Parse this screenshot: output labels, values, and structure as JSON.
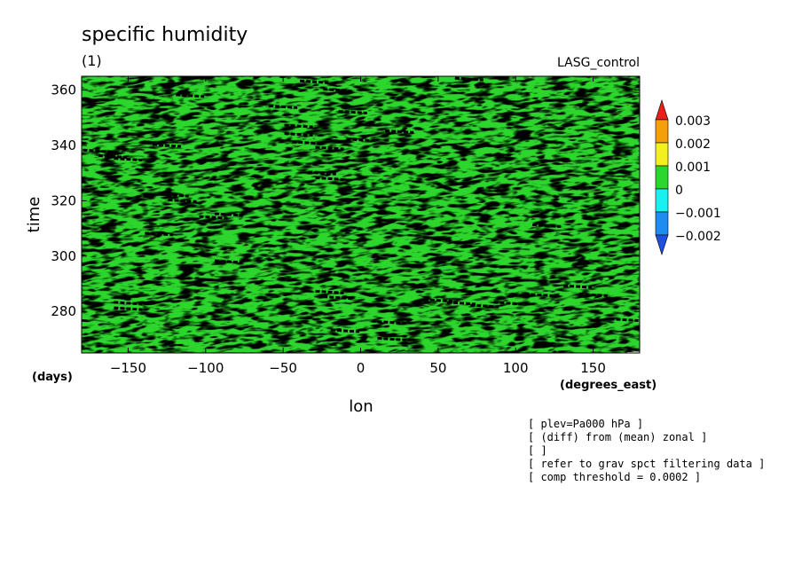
{
  "chart_data": {
    "type": "heatmap",
    "title": "specific humidity",
    "subtitle": "(1)",
    "run_label": "LASG_control",
    "xlabel": "lon",
    "ylabel": "time",
    "x_unit": "(degrees_east)",
    "y_unit": "(days)",
    "xlim": [
      -180,
      180
    ],
    "ylim": [
      265,
      365
    ],
    "x_ticks": [
      -150,
      -100,
      -50,
      0,
      50,
      100,
      150
    ],
    "y_ticks": [
      280,
      300,
      320,
      340,
      360
    ],
    "x_tick_labels": [
      "−150",
      "−100",
      "−50",
      "0",
      "50",
      "100",
      "150"
    ],
    "y_tick_labels": [
      "280",
      "300",
      "320",
      "340",
      "360"
    ],
    "colorbar": {
      "levels": [
        "0.003",
        "0.002",
        "0.001",
        "0",
        "−0.001",
        "−0.002"
      ],
      "colors": [
        "#e8201c",
        "#f59f0c",
        "#f2f01e",
        "#2cd62c",
        "#19f0f0",
        "#1f8cf0",
        "#1f50e0"
      ]
    },
    "threshold_marks": [
      {
        "lon": -170,
        "time": 338
      },
      {
        "lon": -160,
        "time": 336
      },
      {
        "lon": -150,
        "time": 335
      },
      {
        "lon": -125,
        "time": 340
      },
      {
        "lon": -120,
        "time": 322
      },
      {
        "lon": -115,
        "time": 320
      },
      {
        "lon": -110,
        "time": 358
      },
      {
        "lon": -95,
        "time": 314
      },
      {
        "lon": -85,
        "time": 315
      },
      {
        "lon": -130,
        "time": 308
      },
      {
        "lon": -85,
        "time": 298
      },
      {
        "lon": -150,
        "time": 283
      },
      {
        "lon": -150,
        "time": 281
      },
      {
        "lon": -50,
        "time": 354
      },
      {
        "lon": -40,
        "time": 347
      },
      {
        "lon": -40,
        "time": 344
      },
      {
        "lon": -35,
        "time": 341
      },
      {
        "lon": -20,
        "time": 339
      },
      {
        "lon": -30,
        "time": 363
      },
      {
        "lon": -15,
        "time": 360
      },
      {
        "lon": -5,
        "time": 352
      },
      {
        "lon": 0,
        "time": 342
      },
      {
        "lon": -25,
        "time": 330
      },
      {
        "lon": -20,
        "time": 328
      },
      {
        "lon": -20,
        "time": 287
      },
      {
        "lon": -15,
        "time": 285
      },
      {
        "lon": 20,
        "time": 276
      },
      {
        "lon": 20,
        "time": 270
      },
      {
        "lon": 50,
        "time": 284
      },
      {
        "lon": 65,
        "time": 283
      },
      {
        "lon": 80,
        "time": 282
      },
      {
        "lon": 95,
        "time": 283
      },
      {
        "lon": 70,
        "time": 364
      },
      {
        "lon": 120,
        "time": 311
      },
      {
        "lon": 115,
        "time": 286
      },
      {
        "lon": 140,
        "time": 289
      },
      {
        "lon": 150,
        "time": 286
      },
      {
        "lon": 170,
        "time": 277
      },
      {
        "lon": -10,
        "time": 273
      },
      {
        "lon": 25,
        "time": 345
      }
    ]
  },
  "info": [
    "[ plev=Pa000 hPa ]",
    "[ (diff) from (mean) zonal ]",
    "[  ]",
    "[ refer to grav spct filtering data ]",
    "[ comp threshold = 0.0002 ]"
  ]
}
